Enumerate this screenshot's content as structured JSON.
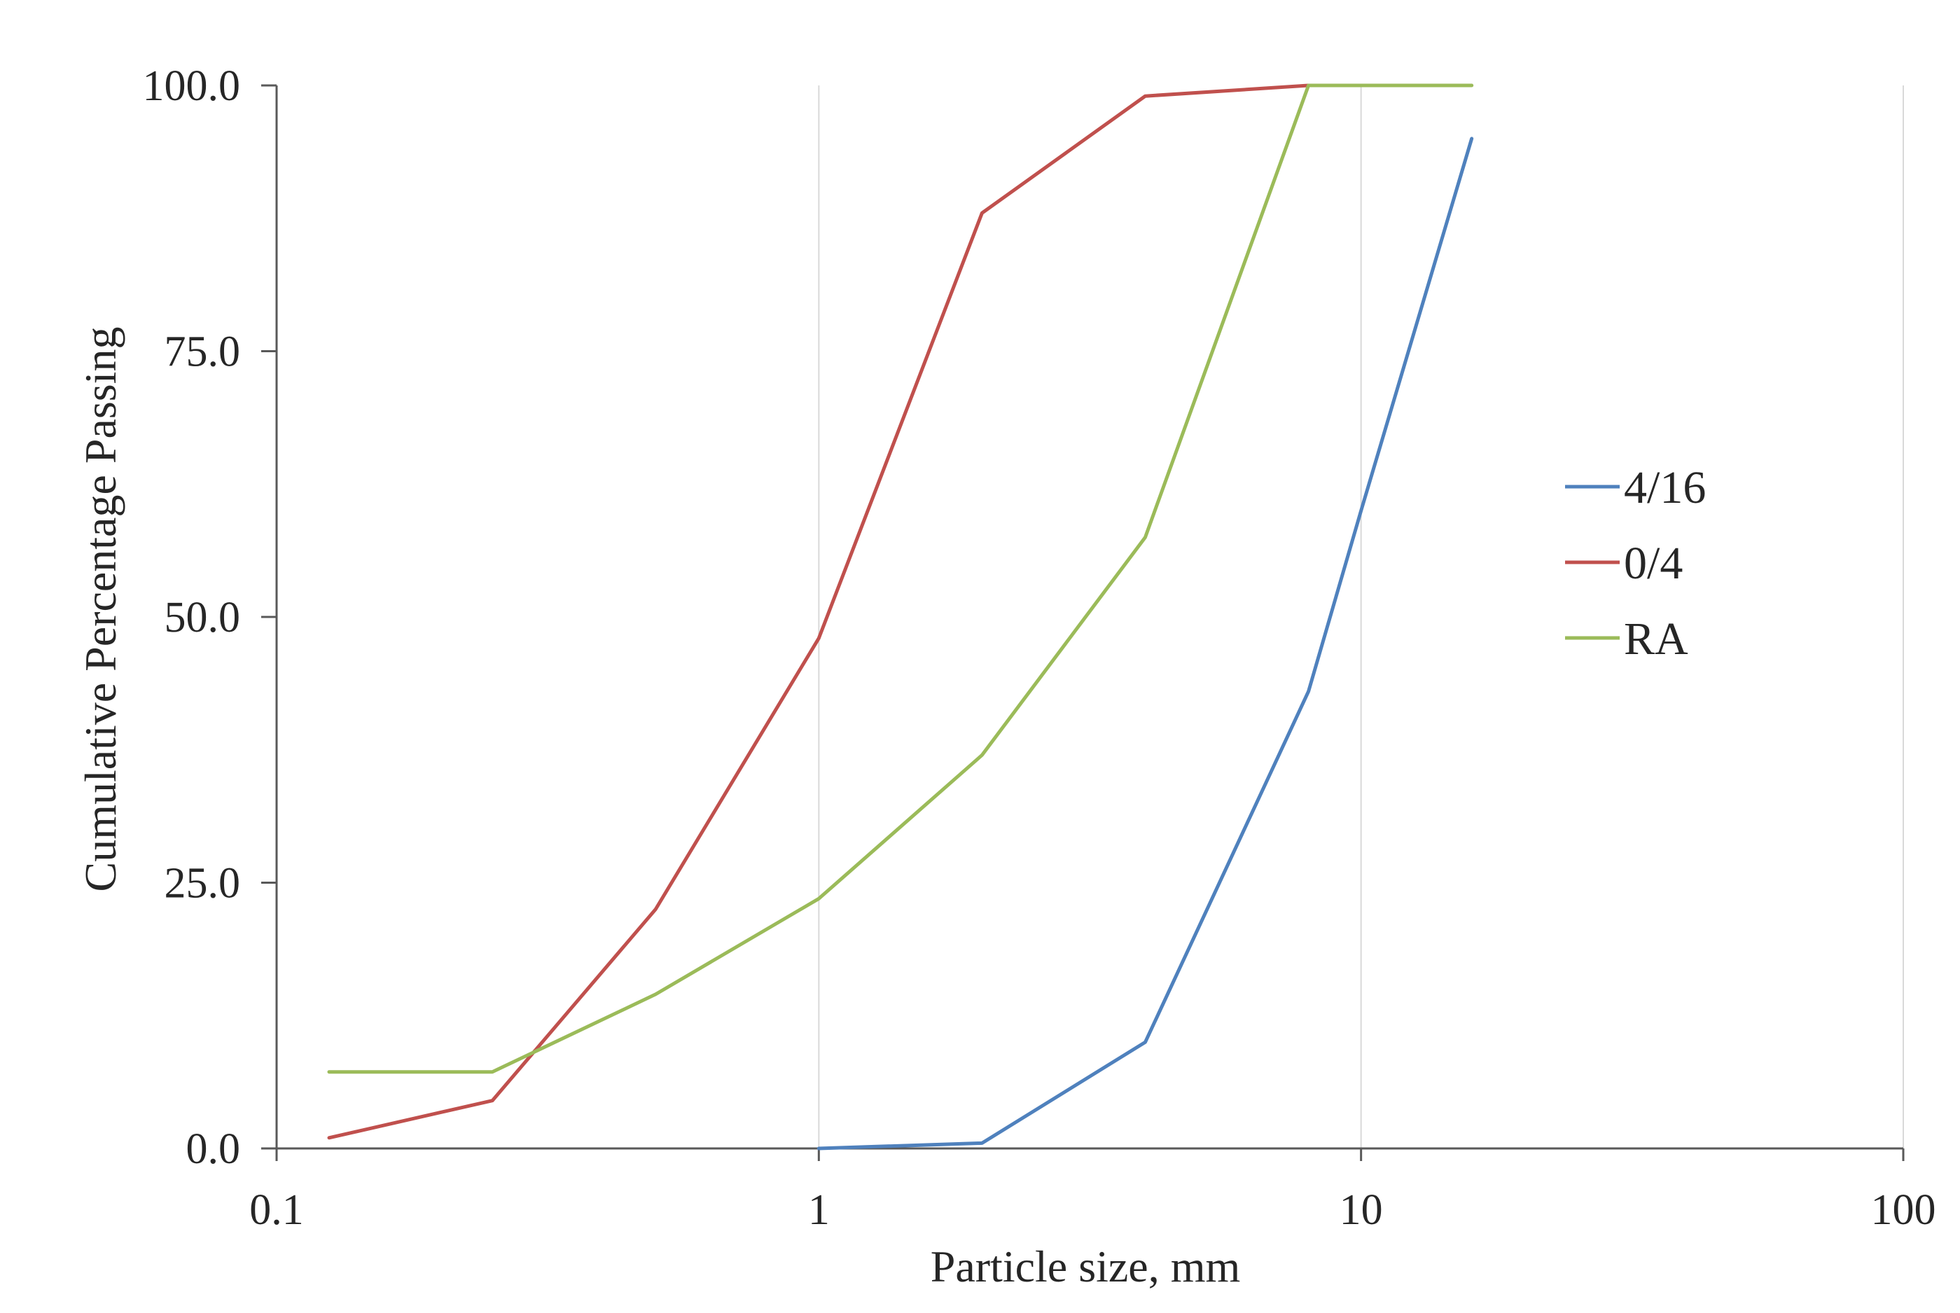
{
  "chart_data": {
    "type": "line",
    "title": "",
    "xlabel": "Particle size, mm",
    "ylabel": "Cumulative Percentage Passing",
    "x_scale": "log",
    "xlim": [
      0.1,
      100
    ],
    "ylim": [
      0,
      100
    ],
    "x_ticks": [
      0.1,
      1,
      10,
      100
    ],
    "x_tick_labels": [
      "0.1",
      "1",
      "10",
      "100"
    ],
    "y_ticks": [
      0,
      25,
      50,
      75,
      100
    ],
    "y_tick_labels": [
      "0.0",
      "25.0",
      "50.0",
      "75.0",
      "100.0"
    ],
    "grid": "vertical major gridlines",
    "legend_position": "right",
    "series": [
      {
        "name": "4/16",
        "color": "#4f81bd",
        "points": [
          [
            1,
            0
          ],
          [
            2,
            0.5
          ],
          [
            4,
            10
          ],
          [
            8,
            43
          ],
          [
            10,
            60
          ],
          [
            16,
            95
          ]
        ]
      },
      {
        "name": "0/4",
        "color": "#c0504d",
        "points": [
          [
            0.125,
            1
          ],
          [
            0.25,
            4.5
          ],
          [
            0.5,
            22.5
          ],
          [
            1,
            48
          ],
          [
            2,
            88
          ],
          [
            4,
            99
          ],
          [
            8,
            100
          ]
        ]
      },
      {
        "name": "RA",
        "color": "#9bbb59",
        "points": [
          [
            0.125,
            7.2
          ],
          [
            0.25,
            7.2
          ],
          [
            0.5,
            14.5
          ],
          [
            1,
            23.5
          ],
          [
            2,
            37
          ],
          [
            4,
            57.5
          ],
          [
            8,
            100
          ],
          [
            16,
            100
          ]
        ]
      }
    ]
  }
}
